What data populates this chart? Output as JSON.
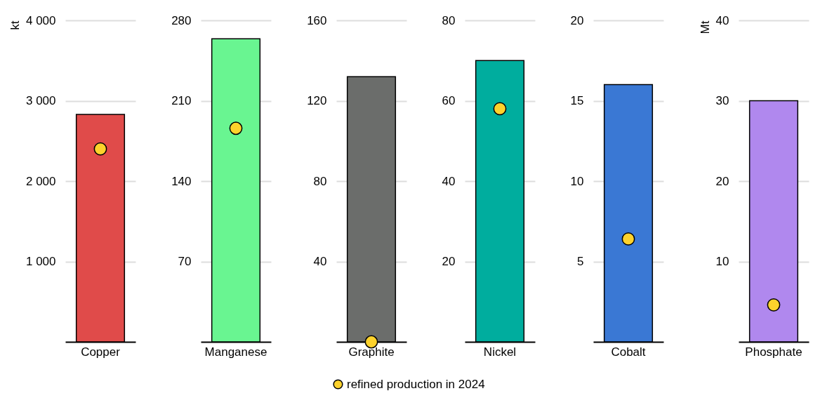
{
  "chart_data": [
    {
      "type": "bar",
      "categories": [
        "Copper"
      ],
      "ylabel": "kt",
      "ylim": [
        0,
        4000
      ],
      "yticks": [
        {
          "value": 1000,
          "label": "1 000"
        },
        {
          "value": 2000,
          "label": "2 000"
        },
        {
          "value": 3000,
          "label": "3 000"
        },
        {
          "value": 4000,
          "label": "4 000"
        }
      ],
      "grid": "y",
      "legend": "bottom",
      "marker": "circle",
      "series": [
        {
          "type": "bar",
          "color": "#e04b4a",
          "values": [
            2830
          ]
        },
        {
          "type": "scatter",
          "name": "refined production in 2024",
          "color": "#fdd22c",
          "x": [
            "Copper"
          ],
          "values": [
            2400
          ]
        }
      ]
    },
    {
      "type": "bar",
      "categories": [
        "Manganese"
      ],
      "ylim": [
        0,
        280
      ],
      "yticks": [
        70,
        140,
        210,
        280
      ],
      "grid": "y",
      "legend": "bottom",
      "marker": "circle",
      "series": [
        {
          "type": "bar",
          "color": "#69f591",
          "values": [
            264
          ]
        },
        {
          "type": "scatter",
          "name": "refined production in 2024",
          "color": "#fdd22c",
          "x": [
            "Manganese"
          ],
          "values": [
            186
          ]
        }
      ]
    },
    {
      "type": "bar",
      "categories": [
        "Graphite"
      ],
      "ylim": [
        0,
        160
      ],
      "yticks": [
        40,
        80,
        120,
        160
      ],
      "grid": "y",
      "legend": "bottom",
      "marker": "circle",
      "series": [
        {
          "type": "bar",
          "color": "#6b6d6b",
          "values": [
            132
          ]
        },
        {
          "type": "scatter",
          "name": "refined production in 2024",
          "color": "#fdd22c",
          "x": [
            "Graphite"
          ],
          "values": [
            0
          ]
        }
      ]
    },
    {
      "type": "bar",
      "categories": [
        "Nickel"
      ],
      "ylim": [
        0,
        80
      ],
      "yticks": [
        20,
        40,
        60,
        80
      ],
      "grid": "y",
      "legend": "bottom",
      "marker": "circle",
      "series": [
        {
          "type": "bar",
          "color": "#00ad9e",
          "values": [
            70
          ]
        },
        {
          "type": "scatter",
          "name": "refined production in 2024",
          "color": "#fdd22c",
          "x": [
            "Nickel"
          ],
          "values": [
            58
          ]
        }
      ]
    },
    {
      "type": "bar",
      "categories": [
        "Cobalt"
      ],
      "ylim": [
        0,
        20
      ],
      "yticks": [
        5,
        10,
        15,
        20
      ],
      "grid": "y",
      "legend": "bottom",
      "marker": "circle",
      "series": [
        {
          "type": "bar",
          "color": "#3a78d4",
          "values": [
            16
          ]
        },
        {
          "type": "scatter",
          "name": "refined production in 2024",
          "color": "#fdd22c",
          "x": [
            "Cobalt"
          ],
          "values": [
            6.4
          ]
        }
      ]
    },
    {
      "type": "bar",
      "categories": [
        "Phosphate"
      ],
      "ylabel": "Mt",
      "ylim": [
        0,
        40
      ],
      "yticks": [
        10,
        20,
        30,
        40
      ],
      "grid": "y",
      "legend": "bottom",
      "marker": "circle",
      "series": [
        {
          "type": "bar",
          "color": "#b088ee",
          "values": [
            30
          ]
        },
        {
          "type": "scatter",
          "name": "refined production in 2024",
          "color": "#fdd22c",
          "x": [
            "Phosphate"
          ],
          "values": [
            4.6
          ]
        }
      ]
    }
  ]
}
